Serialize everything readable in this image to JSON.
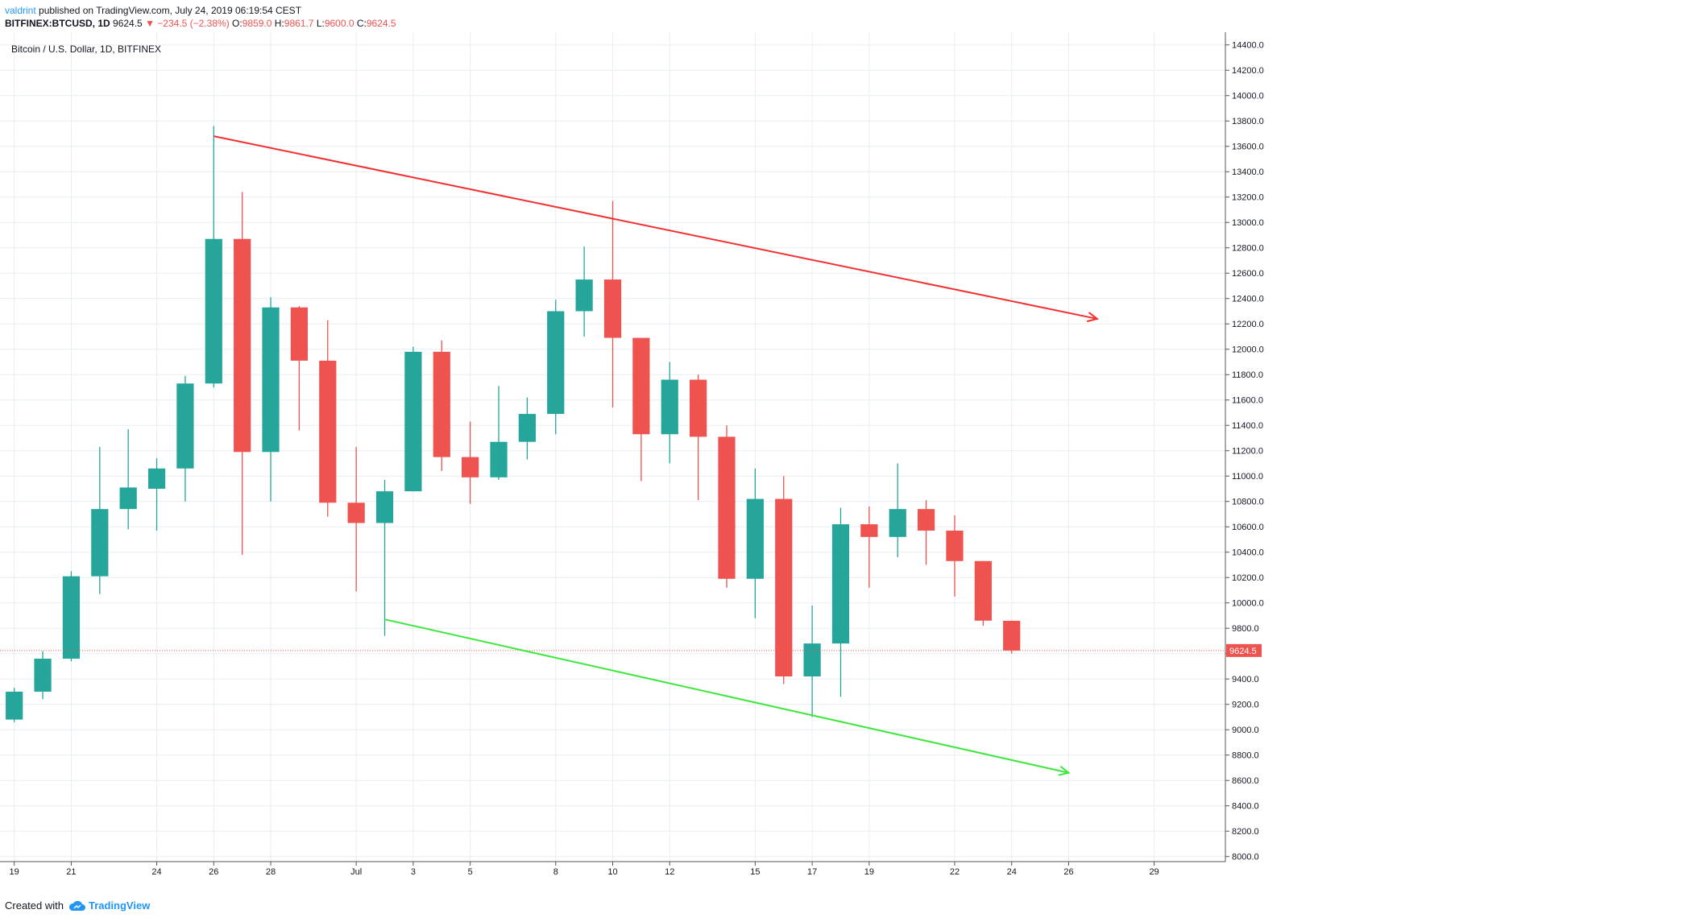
{
  "header": {
    "publisher": "valdrint",
    "published_text": "published on TradingView.com, July 24, 2019 06:19:54 CEST"
  },
  "ohlc_bar": {
    "symbol": "BITFINEX:BTCUSD, 1D",
    "last": "9624.5",
    "change_arrow": "▼",
    "change": "−234.5 (−2.38%)",
    "o_label": "O:",
    "o": "9859.0",
    "h_label": "H:",
    "h": "9861.7",
    "l_label": "L:",
    "l": "9600.0",
    "c_label": "C:",
    "c": "9624.5"
  },
  "footer": {
    "created_with": "Created with",
    "brand": "TradingView",
    "logo_icon": "tradingview-cloud-icon"
  },
  "colors": {
    "up": "#26a69a",
    "down": "#ef5350",
    "resistance": "#f23030",
    "support": "#3fe63f",
    "grid": "#e7eef4",
    "price_line": "#ef5350"
  },
  "chart_data": {
    "type": "candlestick",
    "title": "Bitcoin / U.S. Dollar, 1D, BITFINEX",
    "ylim": [
      7960,
      14500
    ],
    "y_ticks": [
      8000,
      8200,
      8400,
      8600,
      8800,
      9000,
      9200,
      9400,
      9600,
      9800,
      10000,
      10200,
      10400,
      10600,
      10800,
      11000,
      11200,
      11400,
      11600,
      11800,
      12000,
      12200,
      12400,
      12600,
      12800,
      13000,
      13200,
      13400,
      13600,
      13800,
      14000,
      14200,
      14400
    ],
    "x_tick_labels": [
      {
        "day": 0,
        "label": "19"
      },
      {
        "day": 2,
        "label": "21"
      },
      {
        "day": 5,
        "label": "24"
      },
      {
        "day": 7,
        "label": "26"
      },
      {
        "day": 9,
        "label": "28"
      },
      {
        "day": 12,
        "label": "Jul"
      },
      {
        "day": 14,
        "label": "3"
      },
      {
        "day": 16,
        "label": "5"
      },
      {
        "day": 19,
        "label": "8"
      },
      {
        "day": 21,
        "label": "10"
      },
      {
        "day": 23,
        "label": "12"
      },
      {
        "day": 26,
        "label": "15"
      },
      {
        "day": 28,
        "label": "17"
      },
      {
        "day": 30,
        "label": "19"
      },
      {
        "day": 33,
        "label": "22"
      },
      {
        "day": 35,
        "label": "24"
      },
      {
        "day": 37,
        "label": "26"
      },
      {
        "day": 40,
        "label": "29"
      }
    ],
    "x_range_days": [
      -0.5,
      42.5
    ],
    "candles": [
      {
        "o": 9080,
        "h": 9330,
        "l": 9060,
        "c": 9300
      },
      {
        "o": 9300,
        "h": 9620,
        "l": 9240,
        "c": 9560
      },
      {
        "o": 9560,
        "h": 10250,
        "l": 9540,
        "c": 10210
      },
      {
        "o": 10210,
        "h": 11230,
        "l": 10070,
        "c": 10740
      },
      {
        "o": 10740,
        "h": 11370,
        "l": 10580,
        "c": 10910
      },
      {
        "o": 10900,
        "h": 11140,
        "l": 10570,
        "c": 11060
      },
      {
        "o": 11060,
        "h": 11790,
        "l": 10800,
        "c": 11730
      },
      {
        "o": 11730,
        "h": 13760,
        "l": 11700,
        "c": 12870
      },
      {
        "o": 12870,
        "h": 13240,
        "l": 10380,
        "c": 11190
      },
      {
        "o": 11190,
        "h": 12410,
        "l": 10800,
        "c": 12330
      },
      {
        "o": 12330,
        "h": 12340,
        "l": 11360,
        "c": 11910
      },
      {
        "o": 11910,
        "h": 12230,
        "l": 10680,
        "c": 10790
      },
      {
        "o": 10790,
        "h": 11230,
        "l": 10090,
        "c": 10630
      },
      {
        "o": 10630,
        "h": 10970,
        "l": 9740,
        "c": 10880
      },
      {
        "o": 10880,
        "h": 12020,
        "l": 10880,
        "c": 11980
      },
      {
        "o": 11980,
        "h": 12070,
        "l": 11040,
        "c": 11150
      },
      {
        "o": 11150,
        "h": 11430,
        "l": 10780,
        "c": 10990
      },
      {
        "o": 10990,
        "h": 11710,
        "l": 10970,
        "c": 11270
      },
      {
        "o": 11270,
        "h": 11620,
        "l": 11130,
        "c": 11490
      },
      {
        "o": 11490,
        "h": 12390,
        "l": 11330,
        "c": 12300
      },
      {
        "o": 12300,
        "h": 12810,
        "l": 12100,
        "c": 12550
      },
      {
        "o": 12550,
        "h": 13170,
        "l": 11540,
        "c": 12090
      },
      {
        "o": 12090,
        "h": 12090,
        "l": 10960,
        "c": 11330
      },
      {
        "o": 11330,
        "h": 11900,
        "l": 11100,
        "c": 11760
      },
      {
        "o": 11760,
        "h": 11800,
        "l": 10810,
        "c": 11310
      },
      {
        "o": 11310,
        "h": 11400,
        "l": 10120,
        "c": 10190
      },
      {
        "o": 10190,
        "h": 11060,
        "l": 9880,
        "c": 10820
      },
      {
        "o": 10820,
        "h": 11000,
        "l": 9360,
        "c": 9420
      },
      {
        "o": 9420,
        "h": 9980,
        "l": 9100,
        "c": 9680
      },
      {
        "o": 9680,
        "h": 10750,
        "l": 9260,
        "c": 10620
      },
      {
        "o": 10620,
        "h": 10760,
        "l": 10120,
        "c": 10520
      },
      {
        "o": 10520,
        "h": 11100,
        "l": 10360,
        "c": 10740
      },
      {
        "o": 10740,
        "h": 10810,
        "l": 10300,
        "c": 10570
      },
      {
        "o": 10570,
        "h": 10690,
        "l": 10050,
        "c": 10330
      },
      {
        "o": 10330,
        "h": 10330,
        "l": 9820,
        "c": 9860
      },
      {
        "o": 9859.0,
        "h": 9861.7,
        "l": 9600.0,
        "c": 9624.5
      }
    ],
    "trendlines": [
      {
        "color_key": "resistance",
        "from": {
          "day": 7,
          "price": 13680
        },
        "to": {
          "day": 38,
          "price": 12240
        }
      },
      {
        "color_key": "support",
        "from": {
          "day": 13,
          "price": 9870
        },
        "to": {
          "day": 37,
          "price": 8660
        }
      }
    ],
    "last_price": 9624.5,
    "last_price_label": "9624.5"
  }
}
